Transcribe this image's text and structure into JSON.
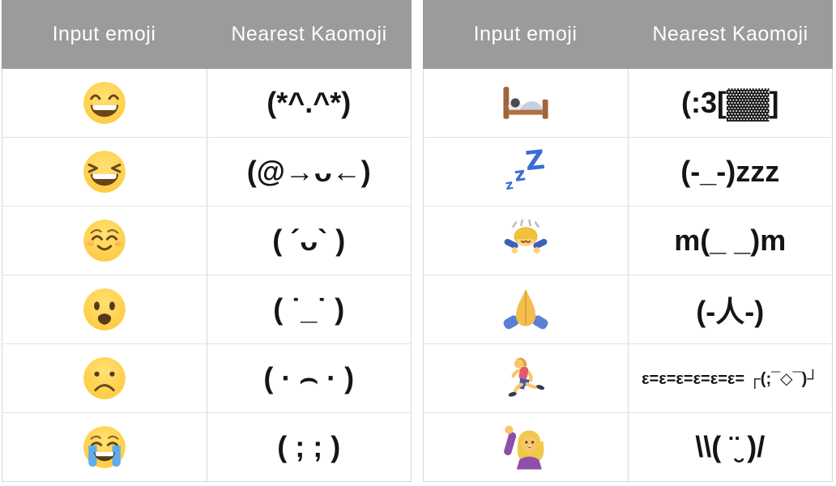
{
  "colors": {
    "header_bg": "#9B9B9B",
    "header_text": "#FFFFFF",
    "border": "#D8D8D8",
    "row_divider": "#E3E3E3",
    "kaomoji_text": "#151515",
    "zzz_blue": "#3A6CD4",
    "tear_blue": "#5DADEC"
  },
  "tables": [
    {
      "headers": [
        "Input emoji",
        "Nearest Kaomoji"
      ],
      "rows": [
        {
          "emoji": "😄",
          "emoji_name": "grinning-face-with-smiling-eyes",
          "kaomoji": "(*^.^*)"
        },
        {
          "emoji": "😆",
          "emoji_name": "grinning-squinting-face",
          "kaomoji": "(@→ᴗ←)"
        },
        {
          "emoji": "☺️",
          "emoji_name": "smiling-face",
          "kaomoji": "( ´ᴗ` )"
        },
        {
          "emoji": "😦",
          "emoji_name": "frowning-face-with-open-mouth",
          "kaomoji": "( ˙_˙ )"
        },
        {
          "emoji": "☹️",
          "emoji_name": "frowning-face",
          "kaomoji": "( · ⌢ · )"
        },
        {
          "emoji": "😭",
          "emoji_name": "loudly-crying-face",
          "kaomoji": "( ; ; )"
        }
      ]
    },
    {
      "headers": [
        "Input emoji",
        "Nearest Kaomoji"
      ],
      "rows": [
        {
          "emoji": "🛌",
          "emoji_name": "person-in-bed",
          "kaomoji": "(:3[▓▓]"
        },
        {
          "emoji": "💤",
          "emoji_name": "zzz-sleeping-symbol",
          "kaomoji": "(-_-)zzz"
        },
        {
          "emoji": "🙇",
          "emoji_name": "person-bowing",
          "kaomoji": "m(_ _)m"
        },
        {
          "emoji": "🙏",
          "emoji_name": "folded-hands",
          "kaomoji": "(-人-)"
        },
        {
          "emoji": "🏃",
          "emoji_name": "person-running",
          "kaomoji": "ε=ε=ε=ε=ε=ε= ┌(;¯◇¯)┘"
        },
        {
          "emoji": "🙋",
          "emoji_name": "person-raising-hand",
          "kaomoji": "\\\\( ¨̮ )/"
        }
      ]
    }
  ],
  "chart_data": [
    {
      "type": "table",
      "headers": [
        "Input emoji",
        "Nearest Kaomoji"
      ],
      "rows": [
        [
          "😄",
          "(*^.^*)"
        ],
        [
          "😆",
          "(@→ᴗ←)"
        ],
        [
          "☺️",
          "( ´ᴗ` )"
        ],
        [
          "😦",
          "( ˙_˙ )"
        ],
        [
          "☹️",
          "( · ⌢ · )"
        ],
        [
          "😭",
          "( ; ; )"
        ]
      ]
    },
    {
      "type": "table",
      "headers": [
        "Input emoji",
        "Nearest Kaomoji"
      ],
      "rows": [
        [
          "🛌",
          "(:3[▓▓]"
        ],
        [
          "💤",
          "(-_-)zzz"
        ],
        [
          "🙇",
          "m(_ _)m"
        ],
        [
          "🙏",
          "(-人-)"
        ],
        [
          "🏃",
          "ε=ε=ε=ε=ε=ε= ┌(;¯◇¯)┘"
        ],
        [
          "🙋",
          "\\\\( ¨̮ )/"
        ]
      ]
    }
  ]
}
